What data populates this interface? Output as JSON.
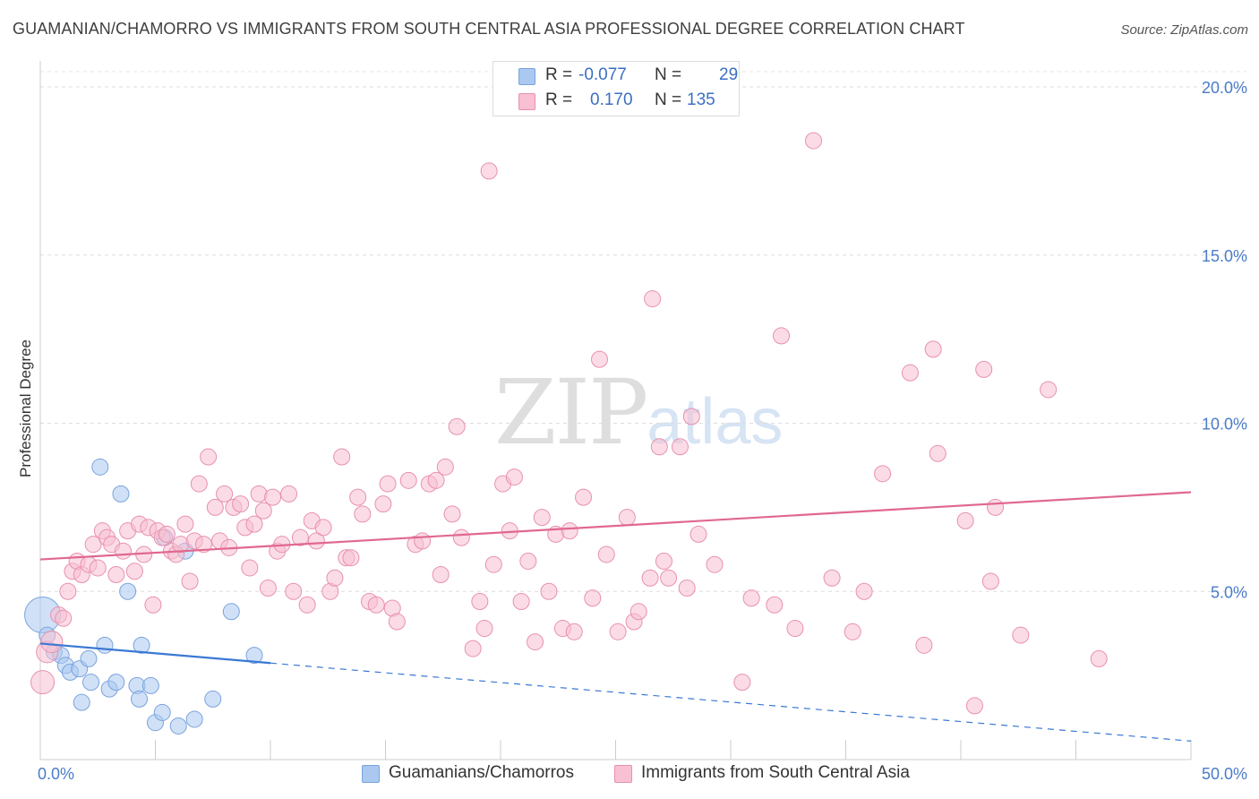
{
  "title": "GUAMANIAN/CHAMORRO VS IMMIGRANTS FROM SOUTH CENTRAL ASIA PROFESSIONAL DEGREE CORRELATION CHART",
  "source": "Source: ZipAtlas.com",
  "watermark": {
    "zip": "ZIP",
    "atlas": "atlas"
  },
  "legend": {
    "rows": [
      {
        "r_label": "R =",
        "r_value": "-0.077",
        "n_label": "N =",
        "n_value": "29",
        "color": "#aac8f0",
        "border": "#7aa3dc"
      },
      {
        "r_label": "R =",
        "r_value": "0.170",
        "n_label": "N =",
        "n_value": "135",
        "color": "#f8c0d2",
        "border": "#e890ae"
      }
    ]
  },
  "bottom_legend": [
    {
      "label": "Guamanians/Chamorros",
      "color": "#aac8f0",
      "border": "#7aa3dc"
    },
    {
      "label": "Immigrants from South Central Asia",
      "color": "#f8c0d2",
      "border": "#e890ae"
    }
  ],
  "chart_data": {
    "type": "scatter",
    "ylabel": "Professional Degree",
    "xlim": [
      0,
      50
    ],
    "ylim": [
      0,
      20
    ],
    "x_tick_labels": [
      {
        "value": 0,
        "label": "0.0%"
      },
      {
        "value": 50,
        "label": "50.0%"
      }
    ],
    "y_tick_labels": [
      {
        "value": 5,
        "label": "5.0%"
      },
      {
        "value": 10,
        "label": "10.0%"
      },
      {
        "value": 15,
        "label": "15.0%"
      },
      {
        "value": 20,
        "label": "20.0%"
      }
    ],
    "grid": "horizontal-dashed",
    "series": [
      {
        "name": "Guamanians/Chamorros",
        "color": "#aac8f0",
        "stroke": "#7aa3dc",
        "trend_color": "#3a78d4",
        "trend": {
          "x0": 0,
          "y0": 3.45,
          "x1": 50,
          "y1": 0.55,
          "solid_until": 10
        },
        "points": [
          [
            0.1,
            4.3
          ],
          [
            0.3,
            3.7
          ],
          [
            0.6,
            3.2
          ],
          [
            0.9,
            3.1
          ],
          [
            1.1,
            2.8
          ],
          [
            1.3,
            2.6
          ],
          [
            1.7,
            2.7
          ],
          [
            1.8,
            1.7
          ],
          [
            2.1,
            3.0
          ],
          [
            2.2,
            2.3
          ],
          [
            2.8,
            3.4
          ],
          [
            3.0,
            2.1
          ],
          [
            3.3,
            2.3
          ],
          [
            3.5,
            7.9
          ],
          [
            2.6,
            8.7
          ],
          [
            3.8,
            5.0
          ],
          [
            4.2,
            2.2
          ],
          [
            4.3,
            1.8
          ],
          [
            4.4,
            3.4
          ],
          [
            4.8,
            2.2
          ],
          [
            5.0,
            1.1
          ],
          [
            5.3,
            1.4
          ],
          [
            5.4,
            6.6
          ],
          [
            6.0,
            1.0
          ],
          [
            6.3,
            6.2
          ],
          [
            6.7,
            1.2
          ],
          [
            7.5,
            1.8
          ],
          [
            8.3,
            4.4
          ],
          [
            9.3,
            3.1
          ]
        ]
      },
      {
        "name": "Immigrants from South Central Asia",
        "color": "#f8c0d2",
        "stroke": "#e890ae",
        "trend_color": "#e0688f",
        "trend": {
          "x0": 0,
          "y0": 5.95,
          "x1": 50,
          "y1": 7.95
        },
        "points": [
          [
            0.1,
            2.3
          ],
          [
            0.3,
            3.2
          ],
          [
            0.5,
            3.5
          ],
          [
            0.8,
            4.3
          ],
          [
            1.0,
            4.2
          ],
          [
            1.2,
            5.0
          ],
          [
            1.4,
            5.6
          ],
          [
            1.6,
            5.9
          ],
          [
            1.8,
            5.5
          ],
          [
            2.1,
            5.8
          ],
          [
            2.3,
            6.4
          ],
          [
            2.5,
            5.7
          ],
          [
            2.7,
            6.8
          ],
          [
            2.9,
            6.6
          ],
          [
            3.1,
            6.4
          ],
          [
            3.3,
            5.5
          ],
          [
            3.6,
            6.2
          ],
          [
            3.8,
            6.8
          ],
          [
            4.1,
            5.6
          ],
          [
            4.3,
            7.0
          ],
          [
            4.5,
            6.1
          ],
          [
            4.7,
            6.9
          ],
          [
            4.9,
            4.6
          ],
          [
            5.1,
            6.8
          ],
          [
            5.3,
            6.6
          ],
          [
            5.5,
            6.7
          ],
          [
            5.7,
            6.2
          ],
          [
            5.9,
            6.1
          ],
          [
            6.1,
            6.4
          ],
          [
            6.3,
            7.0
          ],
          [
            6.5,
            5.3
          ],
          [
            6.7,
            6.5
          ],
          [
            6.9,
            8.2
          ],
          [
            7.1,
            6.4
          ],
          [
            7.3,
            9.0
          ],
          [
            7.6,
            7.5
          ],
          [
            7.8,
            6.5
          ],
          [
            8.0,
            7.9
          ],
          [
            8.2,
            6.3
          ],
          [
            8.4,
            7.5
          ],
          [
            8.7,
            7.6
          ],
          [
            8.9,
            6.9
          ],
          [
            9.1,
            5.7
          ],
          [
            9.3,
            7.0
          ],
          [
            9.5,
            7.9
          ],
          [
            9.7,
            7.4
          ],
          [
            9.9,
            5.1
          ],
          [
            10.1,
            7.8
          ],
          [
            10.3,
            6.2
          ],
          [
            10.5,
            6.4
          ],
          [
            10.8,
            7.9
          ],
          [
            11.0,
            5.0
          ],
          [
            11.3,
            6.6
          ],
          [
            11.6,
            4.6
          ],
          [
            11.8,
            7.1
          ],
          [
            12.0,
            6.5
          ],
          [
            12.3,
            6.9
          ],
          [
            12.6,
            5.0
          ],
          [
            12.8,
            5.4
          ],
          [
            13.1,
            9.0
          ],
          [
            13.3,
            6.0
          ],
          [
            13.5,
            6.0
          ],
          [
            13.8,
            7.8
          ],
          [
            14.0,
            7.3
          ],
          [
            14.3,
            4.7
          ],
          [
            14.6,
            4.6
          ],
          [
            14.9,
            7.6
          ],
          [
            15.1,
            8.2
          ],
          [
            15.3,
            4.5
          ],
          [
            15.5,
            4.1
          ],
          [
            16.0,
            8.3
          ],
          [
            16.3,
            6.4
          ],
          [
            16.6,
            6.5
          ],
          [
            16.9,
            8.2
          ],
          [
            17.2,
            8.3
          ],
          [
            17.4,
            5.5
          ],
          [
            17.6,
            8.7
          ],
          [
            17.9,
            7.3
          ],
          [
            18.1,
            9.9
          ],
          [
            18.3,
            6.6
          ],
          [
            18.8,
            3.3
          ],
          [
            19.1,
            4.7
          ],
          [
            19.3,
            3.9
          ],
          [
            19.7,
            5.8
          ],
          [
            20.1,
            8.2
          ],
          [
            20.4,
            6.8
          ],
          [
            20.6,
            8.4
          ],
          [
            20.9,
            4.7
          ],
          [
            21.2,
            5.9
          ],
          [
            21.5,
            3.5
          ],
          [
            21.8,
            7.2
          ],
          [
            22.1,
            5.0
          ],
          [
            22.4,
            6.7
          ],
          [
            22.7,
            3.9
          ],
          [
            23.0,
            6.8
          ],
          [
            23.2,
            3.8
          ],
          [
            23.6,
            7.8
          ],
          [
            24.0,
            4.8
          ],
          [
            24.3,
            11.9
          ],
          [
            24.6,
            6.1
          ],
          [
            25.1,
            3.8
          ],
          [
            25.5,
            7.2
          ],
          [
            25.8,
            4.1
          ],
          [
            26.0,
            4.4
          ],
          [
            26.5,
            5.4
          ],
          [
            26.9,
            9.3
          ],
          [
            27.1,
            5.9
          ],
          [
            27.3,
            5.4
          ],
          [
            27.8,
            9.3
          ],
          [
            28.1,
            5.1
          ],
          [
            28.3,
            10.2
          ],
          [
            28.6,
            6.7
          ],
          [
            29.3,
            5.8
          ],
          [
            30.5,
            2.3
          ],
          [
            30.9,
            4.8
          ],
          [
            31.9,
            4.6
          ],
          [
            32.2,
            12.6
          ],
          [
            32.8,
            3.9
          ],
          [
            33.6,
            18.4
          ],
          [
            34.4,
            5.4
          ],
          [
            35.3,
            3.8
          ],
          [
            35.8,
            5.0
          ],
          [
            36.6,
            8.5
          ],
          [
            37.8,
            11.5
          ],
          [
            38.4,
            3.4
          ],
          [
            38.8,
            12.2
          ],
          [
            39.0,
            9.1
          ],
          [
            40.2,
            7.1
          ],
          [
            40.6,
            1.6
          ],
          [
            41.0,
            11.6
          ],
          [
            41.3,
            5.3
          ],
          [
            41.5,
            7.5
          ],
          [
            42.6,
            3.7
          ],
          [
            43.8,
            11.0
          ],
          [
            46.0,
            3.0
          ],
          [
            26.6,
            13.7
          ],
          [
            19.5,
            17.5
          ]
        ]
      }
    ]
  }
}
